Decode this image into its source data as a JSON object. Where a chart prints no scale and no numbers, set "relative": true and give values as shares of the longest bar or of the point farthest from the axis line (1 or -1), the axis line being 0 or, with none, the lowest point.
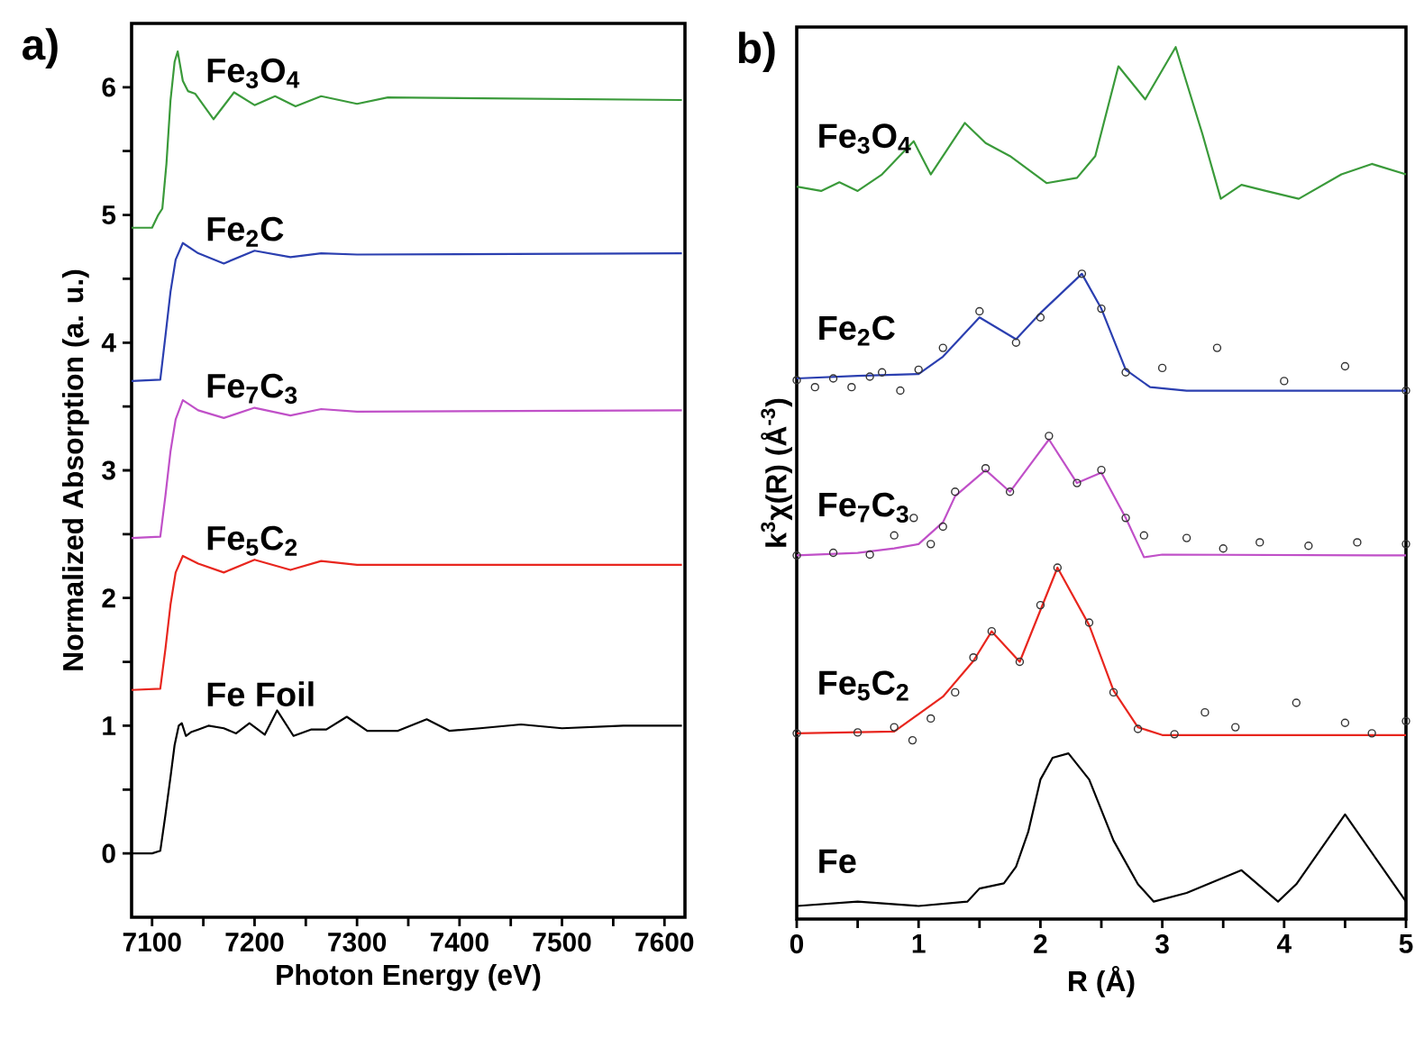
{
  "chart_data": [
    {
      "type": "line",
      "annotations": [
        "a)",
        "Fe Foil",
        "Fe$_{5}$C$_{2}$",
        "Fe$_{7}$C$_{3}$",
        "Fe$_{2}$C",
        "Fe$_{3}$O$_{4}$"
      ],
      "xlabel": "Photon Energy (eV)",
      "ylabel": "Normalized Absorption (a. u.)",
      "xlim": [
        7080,
        7620
      ],
      "ylim": [
        -0.5,
        6.5
      ],
      "xticks": [
        7100,
        {
          "value": 7150,
          "label": null
        },
        7200,
        {
          "value": 7250,
          "label": null
        },
        7300,
        {
          "value": 7350,
          "label": null
        },
        7400,
        {
          "value": 7450,
          "label": null
        },
        7500,
        {
          "value": 7550,
          "label": null
        },
        7600
      ],
      "yticks": [
        0,
        {
          "value": 0.5,
          "label": null
        },
        1,
        {
          "value": 1.5,
          "label": null
        },
        2,
        {
          "value": 2.5,
          "label": null
        },
        3,
        {
          "value": 3.5,
          "label": null
        },
        4,
        {
          "value": 4.5,
          "label": null
        },
        5,
        {
          "value": 5.5,
          "label": null
        },
        6
      ],
      "series": [
        {
          "color": "#000000",
          "x": [
            7080,
            7100,
            7108,
            7113,
            7118,
            7122,
            7126,
            7129,
            7133,
            7138,
            7145,
            7155,
            7170,
            7182,
            7195,
            7210,
            7222,
            7238,
            7255,
            7270,
            7290,
            7310,
            7340,
            7368,
            7390,
            7420,
            7460,
            7500,
            7560,
            7617
          ],
          "values": [
            0,
            0,
            0.02,
            0.3,
            0.6,
            0.85,
            1.0,
            1.02,
            0.92,
            0.95,
            0.97,
            1.0,
            0.98,
            0.94,
            1.02,
            0.93,
            1.12,
            0.92,
            0.97,
            0.97,
            1.07,
            0.96,
            0.96,
            1.05,
            0.96,
            0.98,
            1.01,
            0.98,
            1.0,
            1.0
          ]
        },
        {
          "color": "#e8261e",
          "x": [
            7080,
            7108,
            7113,
            7118,
            7123,
            7130,
            7145,
            7170,
            7200,
            7235,
            7265,
            7300,
            7617
          ],
          "values": [
            1.28,
            1.29,
            1.6,
            1.95,
            2.2,
            2.33,
            2.27,
            2.2,
            2.3,
            2.22,
            2.29,
            2.26,
            2.26
          ]
        },
        {
          "color": "#c050c8",
          "x": [
            7080,
            7108,
            7113,
            7118,
            7123,
            7130,
            7145,
            7170,
            7200,
            7235,
            7265,
            7300,
            7617
          ],
          "values": [
            2.47,
            2.48,
            2.8,
            3.15,
            3.4,
            3.55,
            3.47,
            3.41,
            3.49,
            3.43,
            3.48,
            3.46,
            3.47
          ]
        },
        {
          "color": "#2b3fb0",
          "x": [
            7080,
            7108,
            7113,
            7118,
            7123,
            7130,
            7145,
            7170,
            7200,
            7235,
            7265,
            7300,
            7617
          ],
          "values": [
            3.7,
            3.71,
            4.05,
            4.4,
            4.65,
            4.78,
            4.7,
            4.62,
            4.72,
            4.67,
            4.7,
            4.69,
            4.7
          ]
        },
        {
          "color": "#3a9a3a",
          "x": [
            7080,
            7100,
            7106,
            7110,
            7114,
            7118,
            7122,
            7125,
            7130,
            7135,
            7142,
            7160,
            7180,
            7200,
            7220,
            7240,
            7265,
            7300,
            7330,
            7617
          ],
          "values": [
            4.9,
            4.9,
            5.0,
            5.05,
            5.4,
            5.9,
            6.2,
            6.28,
            6.05,
            5.97,
            5.95,
            5.75,
            5.96,
            5.86,
            5.93,
            5.85,
            5.93,
            5.87,
            5.92,
            5.9
          ]
        }
      ]
    },
    {
      "type": "line",
      "relative": true,
      "annotations": [
        "b)"
      ],
      "xlabel": "R (Å)",
      "ylabel": "k$^{3}$χ(R) (Å$^{-3}$)",
      "xlim": [
        0,
        5
      ],
      "xticks": [
        0,
        {
          "value": 0.5,
          "label": null
        },
        1,
        {
          "value": 1.5,
          "label": null
        },
        2,
        {
          "value": 2.5,
          "label": null
        },
        3,
        {
          "value": 3.5,
          "label": null
        },
        4,
        {
          "value": 4.5,
          "label": null
        },
        5
      ],
      "series": [
        {
          "name": "Fe$_{3}$O$_{4}$",
          "color": "#3a9a3a",
          "x": [
            0,
            0.2,
            0.35,
            0.5,
            0.7,
            0.96,
            1.1,
            1.38,
            1.55,
            1.75,
            2.05,
            2.3,
            2.45,
            2.64,
            2.86,
            3.11,
            3.33,
            3.48,
            3.65,
            3.85,
            4.12,
            4.47,
            4.72,
            5.0
          ],
          "values": [
            0.84,
            0.835,
            0.845,
            0.835,
            0.854,
            0.892,
            0.854,
            0.913,
            0.89,
            0.875,
            0.844,
            0.85,
            0.875,
            0.978,
            0.94,
            1.0,
            0.9,
            0.826,
            0.842,
            0.835,
            0.826,
            0.854,
            0.866,
            0.854
          ]
        },
        {
          "name": "Fe$_{2}$C",
          "color": "#2b3fb0",
          "x": [
            0,
            0.5,
            1.0,
            1.2,
            1.5,
            1.8,
            2.0,
            2.34,
            2.5,
            2.7,
            2.9,
            3.2,
            5.0
          ],
          "values": [
            0.62,
            0.623,
            0.625,
            0.645,
            0.69,
            0.665,
            0.695,
            0.74,
            0.7,
            0.63,
            0.61,
            0.606,
            0.606
          ]
        },
        {
          "type": "scatter",
          "marker": "circle",
          "color": "#333333",
          "x": [
            0,
            0.15,
            0.3,
            0.45,
            0.6,
            0.7,
            0.85,
            1.0,
            1.2,
            1.5,
            1.8,
            2.0,
            2.34,
            2.5,
            2.7,
            3.0,
            3.45,
            4.0,
            4.5,
            5.0
          ],
          "values": [
            0.618,
            0.61,
            0.62,
            0.61,
            0.622,
            0.627,
            0.606,
            0.63,
            0.655,
            0.697,
            0.661,
            0.69,
            0.74,
            0.7,
            0.627,
            0.632,
            0.655,
            0.617,
            0.634,
            0.606
          ]
        },
        {
          "name": "Fe$_{7}$C$_{3}$",
          "color": "#c050c8",
          "x": [
            0,
            0.5,
            0.8,
            1.0,
            1.2,
            1.3,
            1.55,
            1.75,
            2.07,
            2.3,
            2.5,
            2.7,
            2.85,
            3.0,
            5.0
          ],
          "values": [
            0.417,
            0.42,
            0.425,
            0.43,
            0.455,
            0.485,
            0.515,
            0.49,
            0.55,
            0.5,
            0.512,
            0.46,
            0.415,
            0.418,
            0.417
          ]
        },
        {
          "type": "scatter",
          "marker": "circle",
          "color": "#333333",
          "x": [
            0,
            0.3,
            0.6,
            0.8,
            0.96,
            1.1,
            1.2,
            1.3,
            1.55,
            1.75,
            2.07,
            2.3,
            2.5,
            2.7,
            2.85,
            3.2,
            3.5,
            3.8,
            4.2,
            4.6,
            5.0
          ],
          "values": [
            0.417,
            0.42,
            0.418,
            0.44,
            0.46,
            0.43,
            0.45,
            0.49,
            0.517,
            0.49,
            0.554,
            0.5,
            0.515,
            0.46,
            0.44,
            0.437,
            0.425,
            0.432,
            0.428,
            0.432,
            0.43
          ]
        },
        {
          "name": "Fe$_{5}$C$_{2}$",
          "color": "#e8261e",
          "x": [
            0,
            0.8,
            1.2,
            1.45,
            1.6,
            1.83,
            2.14,
            2.4,
            2.6,
            2.8,
            3.0,
            5.0
          ],
          "values": [
            0.213,
            0.215,
            0.255,
            0.296,
            0.33,
            0.295,
            0.403,
            0.337,
            0.262,
            0.22,
            0.211,
            0.211
          ]
        },
        {
          "type": "scatter",
          "marker": "circle",
          "color": "#333333",
          "x": [
            0,
            0.5,
            0.8,
            0.95,
            1.1,
            1.3,
            1.45,
            1.6,
            1.83,
            2.0,
            2.14,
            2.4,
            2.6,
            2.8,
            3.1,
            3.35,
            3.6,
            4.1,
            4.5,
            4.72,
            5.0
          ],
          "values": [
            0.213,
            0.214,
            0.22,
            0.205,
            0.23,
            0.26,
            0.3,
            0.33,
            0.295,
            0.36,
            0.403,
            0.34,
            0.26,
            0.218,
            0.212,
            0.237,
            0.22,
            0.248,
            0.225,
            0.213,
            0.227
          ]
        },
        {
          "name": "Fe",
          "color": "#000000",
          "x": [
            0,
            0.5,
            1.0,
            1.4,
            1.5,
            1.7,
            1.8,
            1.9,
            2.0,
            2.1,
            2.23,
            2.4,
            2.6,
            2.8,
            2.93,
            3.2,
            3.65,
            3.95,
            4.1,
            4.5,
            4.8,
            5.0
          ],
          "values": [
            0.015,
            0.02,
            0.015,
            0.02,
            0.035,
            0.041,
            0.06,
            0.1,
            0.16,
            0.185,
            0.19,
            0.16,
            0.09,
            0.04,
            0.02,
            0.03,
            0.056,
            0.02,
            0.04,
            0.12,
            0.06,
            0.02
          ]
        }
      ]
    }
  ]
}
